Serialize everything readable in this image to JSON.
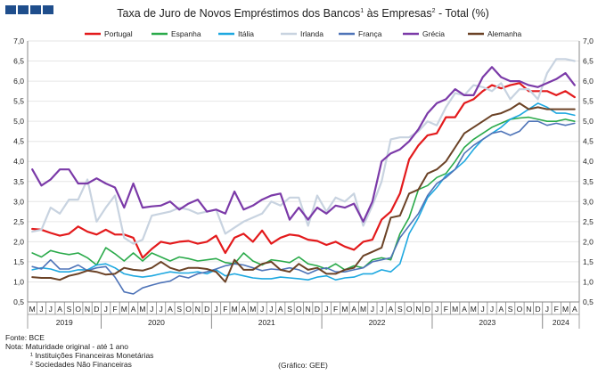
{
  "title_main": "Taxa de Juro de Novos Empréstimos dos Bancos",
  "title_sup1": "1",
  "title_mid": " às Empresas",
  "title_sup2": "2",
  "title_end": " - Total (%)",
  "footer": {
    "source": "Fonte: BCE",
    "note": "Nota: Maturidade original - até 1 ano",
    "note1": "¹ Instituições Financeiras Monetárias",
    "note2": "² Sociedades Não Financeiras",
    "credit": "(Gráfico: GEE)"
  },
  "chart_data": {
    "type": "line",
    "ylim": [
      0.5,
      7.0
    ],
    "yticks": [
      "0,5",
      "1,0",
      "1,5",
      "2,0",
      "2,5",
      "3,0",
      "3,5",
      "4,0",
      "4,5",
      "5,0",
      "5,5",
      "6,0",
      "6,5",
      "7,0"
    ],
    "month_labels": [
      "M",
      "J",
      "J",
      "A",
      "S",
      "O",
      "N",
      "D",
      "J",
      "F",
      "M",
      "A",
      "M",
      "J",
      "J",
      "A",
      "S",
      "O",
      "N",
      "D",
      "J",
      "F",
      "M",
      "A",
      "M",
      "J",
      "J",
      "A",
      "S",
      "O",
      "N",
      "D",
      "J",
      "F",
      "M",
      "A",
      "M",
      "J",
      "J",
      "A",
      "S",
      "O",
      "N",
      "D",
      "J",
      "F",
      "M",
      "A",
      "M",
      "J",
      "J",
      "A",
      "S",
      "O",
      "N",
      "D",
      "J",
      "F",
      "M",
      "A"
    ],
    "years": [
      {
        "label": "2019",
        "start": 0,
        "end": 7
      },
      {
        "label": "2020",
        "start": 8,
        "end": 19
      },
      {
        "label": "2021",
        "start": 20,
        "end": 31
      },
      {
        "label": "2022",
        "start": 32,
        "end": 43
      },
      {
        "label": "2023",
        "start": 44,
        "end": 55
      },
      {
        "label": "2024",
        "start": 56,
        "end": 59
      }
    ],
    "legend_position": "top",
    "series": [
      {
        "name": "Portugal",
        "color": "#e31a1c",
        "width": 2.2,
        "values": [
          2.32,
          2.3,
          2.22,
          2.15,
          2.2,
          2.38,
          2.25,
          2.18,
          2.3,
          2.18,
          2.18,
          2.1,
          1.6,
          1.82,
          2.0,
          1.95,
          2.0,
          2.02,
          1.95,
          2.0,
          2.15,
          1.72,
          2.1,
          2.2,
          2.0,
          2.28,
          1.95,
          2.1,
          2.18,
          2.15,
          2.05,
          2.02,
          1.92,
          2.0,
          1.88,
          1.8,
          2.0,
          2.05,
          2.55,
          2.75,
          3.2,
          4.05,
          4.4,
          4.65,
          4.7,
          5.1,
          5.1,
          5.45,
          5.55,
          5.75,
          5.9,
          5.82,
          5.9,
          5.95,
          5.75,
          5.75,
          5.75,
          5.65,
          5.75,
          5.6
        ]
      },
      {
        "name": "Espanha",
        "color": "#2aaa4a",
        "width": 1.6,
        "values": [
          1.72,
          1.62,
          1.78,
          1.72,
          1.68,
          1.72,
          1.6,
          1.42,
          1.85,
          1.7,
          1.52,
          1.72,
          1.52,
          1.72,
          1.62,
          1.52,
          1.62,
          1.58,
          1.52,
          1.55,
          1.58,
          1.48,
          1.45,
          1.72,
          1.52,
          1.42,
          1.55,
          1.52,
          1.48,
          1.62,
          1.45,
          1.4,
          1.32,
          1.45,
          1.3,
          1.4,
          1.35,
          1.55,
          1.6,
          1.55,
          2.2,
          2.6,
          3.3,
          3.4,
          3.6,
          3.7,
          4.0,
          4.35,
          4.55,
          4.7,
          4.85,
          4.95,
          5.05,
          5.08,
          5.1,
          5.05,
          5.0,
          5.0,
          5.05,
          5.0
        ]
      },
      {
        "name": "Itália",
        "color": "#1ea8e0",
        "width": 1.6,
        "values": [
          1.3,
          1.35,
          1.32,
          1.25,
          1.25,
          1.3,
          1.3,
          1.42,
          1.45,
          1.35,
          1.2,
          1.15,
          1.12,
          1.15,
          1.2,
          1.25,
          1.22,
          1.22,
          1.25,
          1.2,
          1.3,
          1.15,
          1.2,
          1.15,
          1.1,
          1.08,
          1.08,
          1.12,
          1.1,
          1.08,
          1.05,
          1.12,
          1.15,
          1.05,
          1.1,
          1.12,
          1.2,
          1.2,
          1.3,
          1.25,
          1.45,
          2.2,
          2.6,
          3.1,
          3.35,
          3.65,
          3.8,
          4.0,
          4.3,
          4.55,
          4.7,
          4.85,
          5.05,
          5.15,
          5.3,
          5.45,
          5.35,
          5.2,
          5.2,
          5.15
        ]
      },
      {
        "name": "Irlanda",
        "color": "#c8d3e0",
        "width": 2.2,
        "values": [
          2.25,
          2.3,
          2.85,
          2.7,
          3.05,
          3.05,
          3.55,
          2.5,
          2.85,
          3.15,
          2.1,
          1.95,
          2.05,
          2.65,
          2.7,
          2.75,
          2.85,
          2.8,
          2.7,
          2.75,
          2.8,
          2.2,
          2.35,
          2.5,
          2.6,
          2.7,
          3.0,
          2.9,
          3.1,
          3.1,
          2.4,
          3.15,
          2.75,
          3.1,
          3.0,
          3.2,
          2.4,
          2.9,
          3.5,
          4.55,
          4.6,
          4.6,
          4.75,
          5.0,
          4.9,
          5.35,
          5.7,
          5.65,
          5.9,
          5.85,
          5.75,
          5.95,
          5.55,
          5.8,
          5.8,
          5.55,
          6.2,
          6.55,
          6.55,
          6.5
        ]
      },
      {
        "name": "França",
        "color": "#4f74b8",
        "width": 1.6,
        "values": [
          1.38,
          1.32,
          1.55,
          1.32,
          1.32,
          1.42,
          1.28,
          1.35,
          1.38,
          1.12,
          0.75,
          0.7,
          0.85,
          0.92,
          0.98,
          1.02,
          1.15,
          1.1,
          1.2,
          1.25,
          1.32,
          1.4,
          1.45,
          1.42,
          1.35,
          1.28,
          1.32,
          1.3,
          1.35,
          1.3,
          1.2,
          1.3,
          1.35,
          1.25,
          1.25,
          1.3,
          1.35,
          1.5,
          1.55,
          1.6,
          2.1,
          2.4,
          2.7,
          3.15,
          3.45,
          3.6,
          3.8,
          4.2,
          4.4,
          4.55,
          4.7,
          4.75,
          4.65,
          4.75,
          5.0,
          5.0,
          4.9,
          4.95,
          4.9,
          4.95
        ]
      },
      {
        "name": "Grécia",
        "color": "#7b3aa8",
        "width": 2.2,
        "values": [
          3.8,
          3.4,
          3.55,
          3.8,
          3.8,
          3.45,
          3.45,
          3.58,
          3.45,
          3.35,
          2.85,
          3.45,
          2.85,
          2.88,
          2.9,
          3.0,
          2.8,
          2.95,
          3.05,
          2.75,
          2.8,
          2.7,
          3.25,
          2.8,
          2.9,
          3.05,
          3.15,
          3.2,
          2.55,
          2.85,
          2.55,
          2.85,
          2.7,
          2.9,
          2.85,
          2.95,
          2.5,
          3.0,
          4.0,
          4.2,
          4.3,
          4.5,
          4.8,
          5.2,
          5.45,
          5.55,
          5.8,
          5.65,
          5.65,
          6.1,
          6.35,
          6.1,
          6.0,
          6.0,
          5.9,
          5.85,
          5.95,
          6.05,
          6.2,
          5.9
        ]
      },
      {
        "name": "Alemanha",
        "color": "#6b4226",
        "width": 2.0,
        "values": [
          1.12,
          1.1,
          1.1,
          1.05,
          1.15,
          1.2,
          1.28,
          1.25,
          1.18,
          1.2,
          1.35,
          1.3,
          1.28,
          1.35,
          1.5,
          1.35,
          1.28,
          1.35,
          1.35,
          1.32,
          1.25,
          1.0,
          1.55,
          1.3,
          1.3,
          1.45,
          1.5,
          1.3,
          1.25,
          1.45,
          1.3,
          1.35,
          1.2,
          1.2,
          1.3,
          1.35,
          1.65,
          1.75,
          1.85,
          2.6,
          2.65,
          3.2,
          3.3,
          3.7,
          3.8,
          4.0,
          4.35,
          4.7,
          4.85,
          5.0,
          5.15,
          5.2,
          5.3,
          5.45,
          5.3,
          5.35,
          5.3,
          5.3,
          5.3,
          5.3
        ]
      }
    ]
  }
}
